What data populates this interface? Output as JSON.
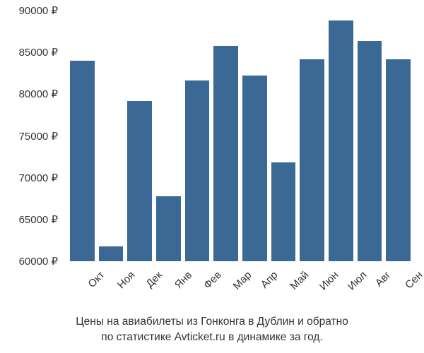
{
  "chart": {
    "type": "bar",
    "categories": [
      "Окт",
      "Ноя",
      "Дек",
      "Янв",
      "Фев",
      "Мар",
      "Апр",
      "Май",
      "Июн",
      "Июл",
      "Авг",
      "Сен"
    ],
    "values": [
      84000,
      61800,
      79200,
      67800,
      81600,
      85800,
      82200,
      71800,
      84200,
      88800,
      86400,
      84200
    ],
    "bar_color": "#3b6894",
    "ylim": [
      60000,
      90000
    ],
    "ytick_step": 5000,
    "ytick_labels": [
      "60000 ₽",
      "65000 ₽",
      "70000 ₽",
      "75000 ₽",
      "80000 ₽",
      "85000 ₽",
      "90000 ₽"
    ],
    "ytick_values": [
      60000,
      65000,
      70000,
      75000,
      80000,
      85000,
      90000
    ],
    "background_color": "#ffffff",
    "text_color": "#333333",
    "tick_fontsize": 15,
    "caption_fontsize": 15.5,
    "bar_gap": 6,
    "x_label_rotation": -45
  },
  "caption": {
    "line1": "Цены на авиабилеты из Гонконга в Дублин и обратно",
    "line2": "по статистике Avticket.ru в динамике за год."
  }
}
